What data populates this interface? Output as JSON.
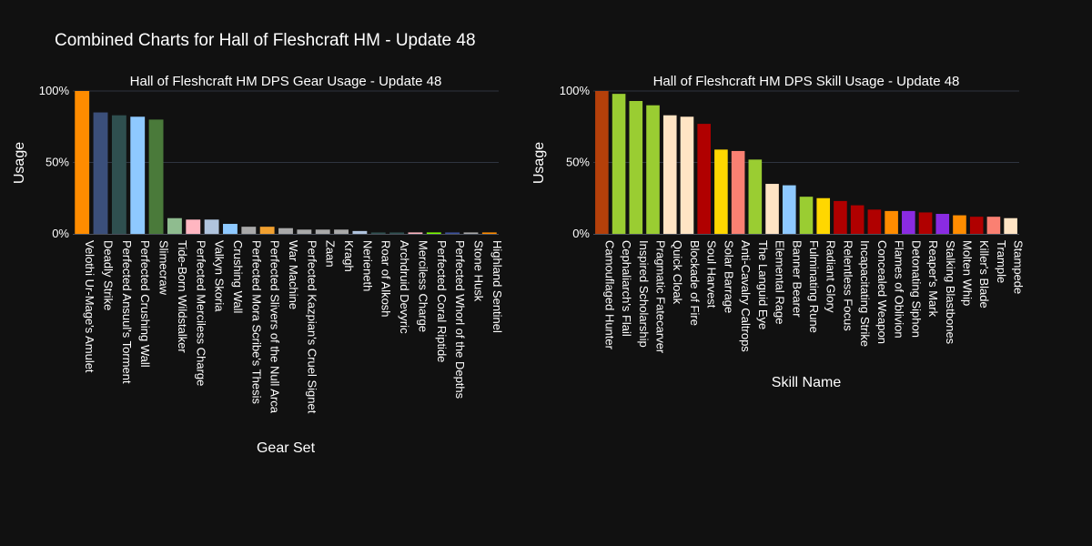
{
  "page": {
    "title": "Combined Charts for Hall of Fleshcraft HM - Update 48",
    "background": "#111111"
  },
  "chart_data": [
    {
      "type": "bar",
      "title": "Hall of Fleshcraft HM DPS Gear Usage - Update 48",
      "xlabel": "Gear Set",
      "ylabel": "Usage",
      "ylim": [
        0,
        1
      ],
      "yticks": [
        0,
        0.5,
        1
      ],
      "ytick_labels": [
        "0%",
        "50%",
        "100%"
      ],
      "grid": true,
      "categories": [
        "Velothi Ur-Mage's Amulet",
        "Deadly Strike",
        "Perfected Ansuul's Torment",
        "Perfected Crushing Wall",
        "Slimecraw",
        "Tide-Born Wildstalker",
        "Perfected Merciless Charge",
        "Valkyn Skoria",
        "Crushing Wall",
        "Perfected Mora Scribe's Thesis",
        "Perfected Slivers of the Null Arca",
        "War Machine",
        "Perfected Kazpian's Cruel Signet",
        "Zaan",
        "Kragh",
        "Nerieneth",
        "Roar of Alkosh",
        "Archdruid Devyric",
        "Merciless Charge",
        "Perfected Coral Riptide",
        "Perfected Whorl of the Depths",
        "Stone Husk",
        "Highland Sentinel"
      ],
      "values": [
        1.0,
        0.85,
        0.83,
        0.82,
        0.8,
        0.11,
        0.1,
        0.1,
        0.07,
        0.05,
        0.05,
        0.04,
        0.03,
        0.03,
        0.03,
        0.02,
        0.01,
        0.01,
        0.01,
        0.01,
        0.01,
        0.01,
        0.01
      ],
      "colors": [
        "#ff8c00",
        "#3b4f7a",
        "#2f4f4f",
        "#8ec9ff",
        "#4a7a3a",
        "#8fbc8f",
        "#ffb6c1",
        "#b0c4de",
        "#8ec9ff",
        "#a9a9a9",
        "#f0a030",
        "#a9a9a9",
        "#a9a9a9",
        "#a9a9a9",
        "#a9a9a9",
        "#b0c4de",
        "#2f4f4f",
        "#2f4f4f",
        "#ffb6c1",
        "#7cfc00",
        "#3b4f9a",
        "#a9a9a9",
        "#ff8c00"
      ]
    },
    {
      "type": "bar",
      "title": "Hall of Fleshcraft HM DPS Skill Usage - Update 48",
      "xlabel": "Skill Name",
      "ylabel": "Usage",
      "ylim": [
        0,
        1
      ],
      "yticks": [
        0,
        0.5,
        1
      ],
      "ytick_labels": [
        "0%",
        "50%",
        "100%"
      ],
      "grid": true,
      "categories": [
        "Camouflaged Hunter",
        "Cephaliarch's Flail",
        "Inspired Scholarship",
        "Pragmatic Fatecarver",
        "Quick Cloak",
        "Blockade of Fire",
        "Soul Harvest",
        "Solar Barrage",
        "Anti-Cavalry Caltrops",
        "The Languid Eye",
        "Elemental Rage",
        "Banner Bearer",
        "Fulminating Rune",
        "Radiant Glory",
        "Relentless Focus",
        "Incapacitating Strike",
        "Concealed Weapon",
        "Flames of Oblivion",
        "Detonating Siphon",
        "Reaper's Mark",
        "Stalking Blastbones",
        "Molten Whip",
        "Killer's Blade",
        "Trample",
        "Stampede"
      ],
      "values": [
        1.0,
        0.98,
        0.93,
        0.9,
        0.83,
        0.82,
        0.77,
        0.59,
        0.58,
        0.52,
        0.35,
        0.34,
        0.26,
        0.25,
        0.23,
        0.2,
        0.17,
        0.16,
        0.16,
        0.15,
        0.14,
        0.13,
        0.12,
        0.12,
        0.11
      ],
      "colors": [
        "#b5400a",
        "#9acd32",
        "#9acd32",
        "#9acd32",
        "#ffe4c4",
        "#ffe4c4",
        "#b00000",
        "#ffd700",
        "#fa8072",
        "#9acd32",
        "#ffe4c4",
        "#8ec9ff",
        "#9acd32",
        "#ffd700",
        "#b00000",
        "#b00000",
        "#b00000",
        "#ff8c00",
        "#8a2be2",
        "#b00000",
        "#8a2be2",
        "#ff8c00",
        "#b00000",
        "#fa8072",
        "#ffe4c4"
      ]
    }
  ]
}
